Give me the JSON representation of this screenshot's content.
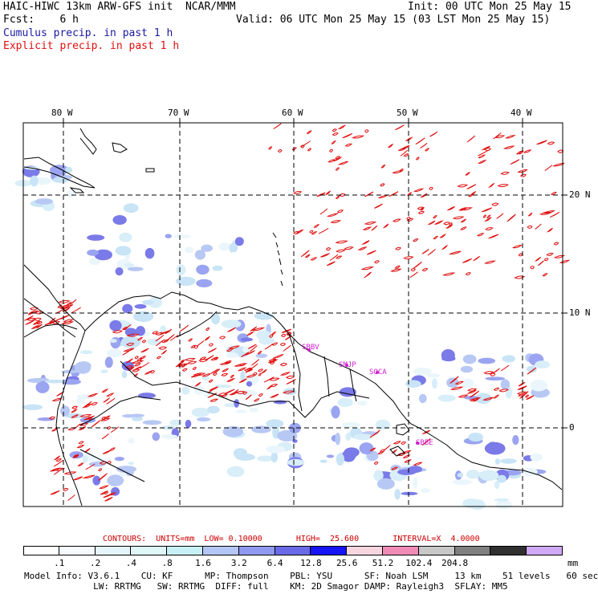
{
  "header": {
    "line1_left": "HAIC-HIWC 13km ARW-GFS init  NCAR/MMM",
    "line1_right": "Init: 00 UTC Mon 25 May 15",
    "line2_left": "Fcst:    6 h",
    "line2_right": "Valid: 06 UTC Mon 25 May 15 (03 LST Mon 25 May 15)",
    "line3": "Cumulus precip. in past 1 h",
    "line4": "Explicit precip. in past 1 h"
  },
  "colors": {
    "cumulus": "#1a1aa0",
    "explicit": "#e01010",
    "station": "#d020d0",
    "contour_info": "#cc0000"
  },
  "map": {
    "lon_labels": [
      "80 W",
      "70 W",
      "60 W",
      "50 W",
      "40 W"
    ],
    "lat_labels": [
      "20 N",
      "10 N",
      "0"
    ],
    "stations": [
      "SBBV",
      "SMJP",
      "SOCA",
      "SBBE"
    ]
  },
  "contour_info": {
    "text": "CONTOURS:  UNITS=mm  LOW= 0.10000       HIGH=  25.600       INTERVAL=X  4.0000"
  },
  "colorbar": {
    "units": "mm",
    "colors": [
      "#ffffff",
      "#f4fafe",
      "#e6f5fb",
      "#dff7f7",
      "#c8f0f7",
      "#b3c6f5",
      "#8f99f0",
      "#6a6ae8",
      "#1414f5",
      "#f8d6e0",
      "#f08cb5",
      "#c8c8c8",
      "#808080",
      "#303030",
      "#d0a8f5"
    ],
    "ticks": [
      ".1",
      ".2",
      ".4",
      ".8",
      "1.6",
      "3.2",
      "6.4",
      "12.8",
      "25.6",
      "51.2",
      "102.4",
      "204.8"
    ]
  },
  "footer": {
    "line1": "Model Info: V3.6.1    CU: KF      MP: Thompson    PBL: YSU      SF: Noah LSM     13 km    51 levels   60 sec",
    "line2": "             LW: RRTMG   SW: RRTMG  DIFF: full    KM: 2D Smagor DAMP: Rayleigh3  SFLAY: MM5"
  }
}
